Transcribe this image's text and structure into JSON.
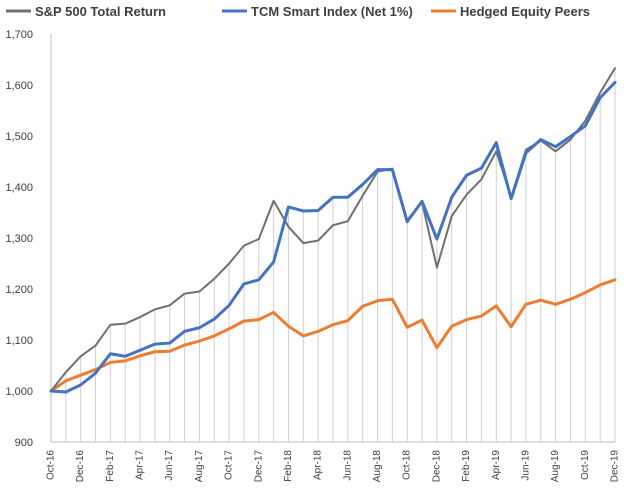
{
  "chart_data": {
    "type": "line",
    "title": "",
    "xlabel": "",
    "ylabel": "",
    "ylim": [
      900,
      1700
    ],
    "yticks": [
      "900",
      "1,000",
      "1,100",
      "1,200",
      "1,300",
      "1,400",
      "1,500",
      "1,600",
      "1,700"
    ],
    "ytick_values": [
      900,
      1000,
      1100,
      1200,
      1300,
      1400,
      1500,
      1600,
      1700
    ],
    "grid": "vertical drop lines",
    "legend_position": "top",
    "x": [
      "Oct-16",
      "Nov-16",
      "Dec-16",
      "Jan-17",
      "Feb-17",
      "Mar-17",
      "Apr-17",
      "May-17",
      "Jun-17",
      "Jul-17",
      "Aug-17",
      "Sep-17",
      "Oct-17",
      "Nov-17",
      "Dec-17",
      "Jan-18",
      "Feb-18",
      "Mar-18",
      "Apr-18",
      "May-18",
      "Jun-18",
      "Jul-18",
      "Aug-18",
      "Sep-18",
      "Oct-18",
      "Nov-18",
      "Dec-18",
      "Jan-19",
      "Feb-19",
      "Mar-19",
      "Apr-19",
      "May-19",
      "Jun-19",
      "Jul-19",
      "Aug-19",
      "Sep-19",
      "Oct-19",
      "Nov-19",
      "Dec-19"
    ],
    "x_tick_labels": [
      "Oct-16",
      "Dec-16",
      "Feb-17",
      "Apr-17",
      "Jun-17",
      "Aug-17",
      "Oct-17",
      "Dec-17",
      "Feb-18",
      "Apr-18",
      "Jun-18",
      "Aug-18",
      "Oct-18",
      "Dec-18",
      "Feb-19",
      "Apr-19",
      "Jun-19",
      "Aug-19",
      "Oct-19",
      "Dec-19"
    ],
    "series": [
      {
        "name": "S&P 500 Total Return",
        "color": "#707070",
        "values": [
          1000,
          1037,
          1068,
          1089,
          1130,
          1132,
          1145,
          1160,
          1168,
          1191,
          1195,
          1220,
          1250,
          1285,
          1298,
          1373,
          1322,
          1290,
          1295,
          1325,
          1333,
          1383,
          1430,
          1436,
          1335,
          1370,
          1242,
          1343,
          1385,
          1415,
          1470,
          1380,
          1473,
          1491,
          1470,
          1493,
          1530,
          1585,
          1633
        ]
      },
      {
        "name": "TCM Smart Index (Net 1%)",
        "color": "#4472C4",
        "values": [
          1000,
          998,
          1012,
          1035,
          1073,
          1068,
          1080,
          1092,
          1094,
          1117,
          1124,
          1141,
          1168,
          1210,
          1218,
          1253,
          1361,
          1353,
          1354,
          1380,
          1380,
          1405,
          1434,
          1434,
          1332,
          1372,
          1298,
          1380,
          1423,
          1437,
          1487,
          1377,
          1467,
          1493,
          1479,
          1499,
          1520,
          1575,
          1605
        ]
      },
      {
        "name": "Hedged Equity Peers",
        "color": "#ED7D31",
        "values": [
          1000,
          1020,
          1031,
          1042,
          1056,
          1059,
          1069,
          1077,
          1078,
          1090,
          1098,
          1108,
          1122,
          1137,
          1140,
          1154,
          1127,
          1108,
          1117,
          1130,
          1138,
          1166,
          1177,
          1180,
          1125,
          1139,
          1085,
          1127,
          1140,
          1147,
          1167,
          1126,
          1170,
          1178,
          1170,
          1180,
          1193,
          1208,
          1218
        ]
      }
    ]
  }
}
